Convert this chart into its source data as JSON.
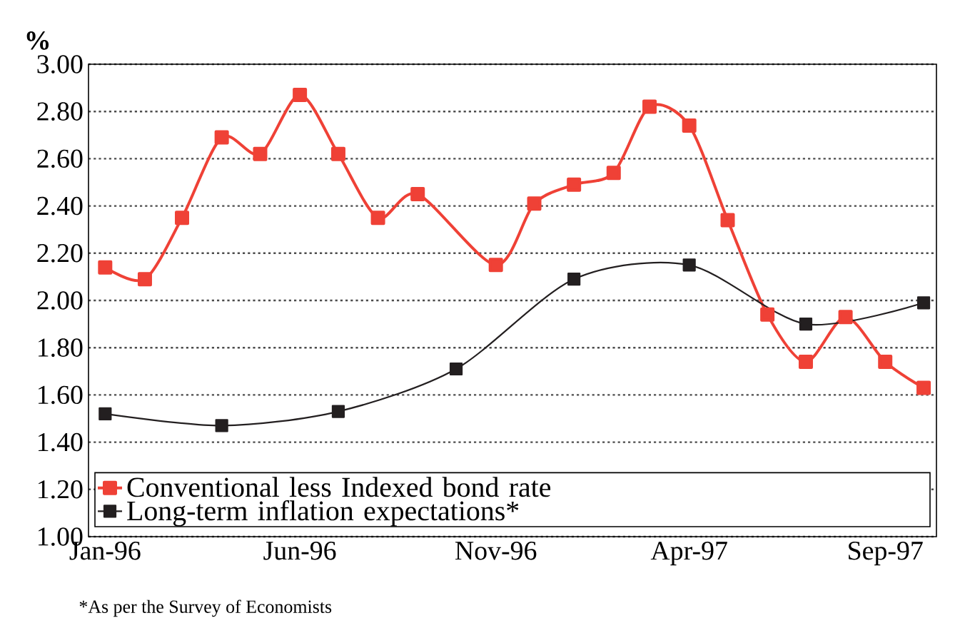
{
  "chart_data": {
    "type": "line",
    "ylabel": "%",
    "series": [
      {
        "name": "Conventional less Indexed bond rate",
        "color": "#ef4136",
        "x": [
          "1996-01",
          "1996-02",
          "1996-03",
          "1996-04",
          "1996-05",
          "1996-06",
          "1996-07",
          "1996-08",
          "1996-09",
          "1996-11",
          "1996-12",
          "1997-01",
          "1997-02",
          "1997-03",
          "1997-04",
          "1997-05",
          "1997-06",
          "1997-07",
          "1997-08",
          "1997-09",
          "1997-10"
        ],
        "values": [
          2.14,
          2.09,
          2.35,
          2.69,
          2.62,
          2.87,
          2.62,
          2.35,
          2.45,
          2.15,
          2.41,
          2.49,
          2.54,
          2.82,
          2.74,
          2.34,
          1.94,
          1.74,
          1.93,
          1.74,
          1.63
        ]
      },
      {
        "name": "Long-term inflation expectations*",
        "color": "#231f20",
        "x": [
          "1996-01",
          "1996-04",
          "1996-07",
          "1996-10",
          "1997-01",
          "1997-04",
          "1997-07",
          "1997-10"
        ],
        "values": [
          1.52,
          1.47,
          1.53,
          1.71,
          2.09,
          2.15,
          1.9,
          1.99
        ]
      }
    ],
    "xlim": [
      "1995-12-19",
      "1997-10-11"
    ],
    "xticks": [
      {
        "value": "1996-01",
        "label": "Jan-96"
      },
      {
        "value": "1996-06",
        "label": "Jun-96"
      },
      {
        "value": "1996-11",
        "label": "Nov-96"
      },
      {
        "value": "1997-04",
        "label": "Apr-97"
      },
      {
        "value": "1997-09",
        "label": "Sep-97"
      }
    ],
    "ylim": [
      1,
      3
    ],
    "yticks": [
      {
        "value": 1,
        "label": "1.00"
      },
      {
        "value": 1.2,
        "label": "1.20"
      },
      {
        "value": 1.4,
        "label": "1.40"
      },
      {
        "value": 1.6,
        "label": "1.60"
      },
      {
        "value": 1.8,
        "label": "1.80"
      },
      {
        "value": 2,
        "label": "2.00"
      },
      {
        "value": 2.2,
        "label": "2.20"
      },
      {
        "value": 2.4,
        "label": "2.40"
      },
      {
        "value": 2.6,
        "label": "2.60"
      },
      {
        "value": 2.8,
        "label": "2.80"
      },
      {
        "value": 3,
        "label": "3.00"
      }
    ],
    "grid": "y",
    "legend": "bottom",
    "marker": "square",
    "line_style": "solid",
    "annotations": [
      "*As per the Survey of Economists"
    ]
  }
}
